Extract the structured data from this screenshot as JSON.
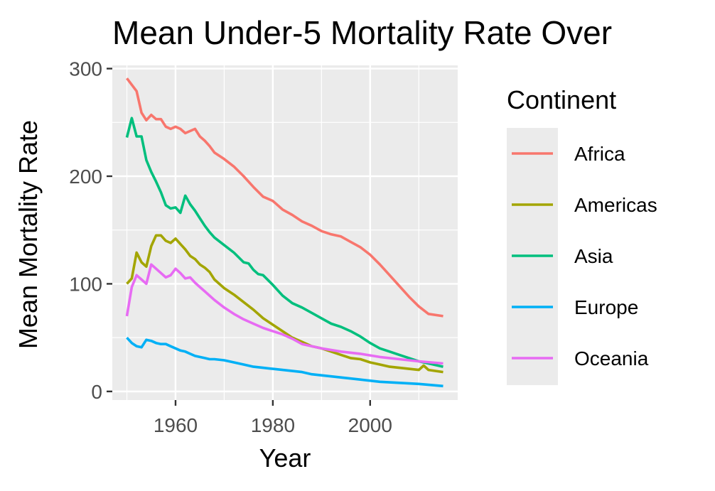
{
  "chart_data": {
    "type": "line",
    "title": "Mean Under-5 Mortality Rate Over",
    "xlabel": "Year",
    "ylabel": "Mean Mortality Rate",
    "xlim": [
      1947,
      2018
    ],
    "ylim": [
      -8,
      303
    ],
    "x_ticks": [
      1960,
      1980,
      2000
    ],
    "x_tick_labels": [
      "1960",
      "1980",
      "2000"
    ],
    "y_ticks": [
      0,
      100,
      200,
      300
    ],
    "y_tick_labels": [
      "0",
      "100",
      "200",
      "300"
    ],
    "grid": true,
    "panel_background": "#ebebeb",
    "legend": {
      "title": "Continent",
      "position": "right"
    },
    "series": [
      {
        "name": "Africa",
        "color": "#F8766D",
        "x": [
          1950,
          1951,
          1952,
          1953,
          1954,
          1955,
          1956,
          1957,
          1958,
          1959,
          1960,
          1961,
          1962,
          1963,
          1964,
          1965,
          1966,
          1967,
          1968,
          1970,
          1972,
          1974,
          1976,
          1978,
          1980,
          1982,
          1984,
          1986,
          1988,
          1990,
          1992,
          1994,
          1996,
          1998,
          2000,
          2002,
          2004,
          2006,
          2008,
          2010,
          2012,
          2015
        ],
        "y": [
          291,
          285,
          279,
          259,
          252,
          257,
          253,
          253,
          246,
          244,
          246,
          244,
          240,
          242,
          244,
          237,
          233,
          228,
          222,
          216,
          209,
          200,
          190,
          181,
          177,
          169,
          164,
          158,
          154,
          149,
          146,
          144,
          139,
          134,
          127,
          118,
          108,
          98,
          88,
          79,
          72,
          70
        ]
      },
      {
        "name": "Americas",
        "color": "#A3A500",
        "x": [
          1950,
          1951,
          1952,
          1953,
          1954,
          1955,
          1956,
          1957,
          1958,
          1959,
          1960,
          1961,
          1962,
          1963,
          1964,
          1965,
          1966,
          1967,
          1968,
          1970,
          1972,
          1974,
          1976,
          1978,
          1980,
          1982,
          1984,
          1986,
          1988,
          1990,
          1992,
          1994,
          1996,
          1998,
          2000,
          2002,
          2004,
          2006,
          2008,
          2010,
          2011,
          2012,
          2015
        ],
        "y": [
          100,
          105,
          129,
          120,
          116,
          135,
          145,
          145,
          140,
          138,
          142,
          137,
          132,
          126,
          123,
          118,
          115,
          111,
          104,
          96,
          90,
          83,
          76,
          68,
          62,
          56,
          50,
          46,
          42,
          40,
          37,
          34,
          31,
          30,
          27,
          25,
          23,
          22,
          21,
          20,
          24,
          20,
          18
        ]
      },
      {
        "name": "Asia",
        "color": "#00BF7D",
        "x": [
          1950,
          1951,
          1952,
          1953,
          1954,
          1955,
          1956,
          1957,
          1958,
          1959,
          1960,
          1961,
          1962,
          1963,
          1964,
          1965,
          1966,
          1967,
          1968,
          1970,
          1972,
          1974,
          1975,
          1976,
          1977,
          1978,
          1980,
          1982,
          1984,
          1986,
          1988,
          1990,
          1992,
          1994,
          1996,
          1998,
          2000,
          2002,
          2004,
          2006,
          2008,
          2010,
          2012,
          2015
        ],
        "y": [
          236,
          254,
          237,
          237,
          215,
          204,
          195,
          185,
          173,
          170,
          171,
          166,
          182,
          174,
          168,
          161,
          154,
          148,
          143,
          136,
          129,
          120,
          119,
          113,
          109,
          108,
          99,
          89,
          82,
          78,
          73,
          68,
          63,
          60,
          56,
          51,
          45,
          40,
          37,
          34,
          31,
          28,
          26,
          23
        ]
      },
      {
        "name": "Europe",
        "color": "#00B0F6",
        "x": [
          1950,
          1951,
          1952,
          1953,
          1954,
          1955,
          1956,
          1957,
          1958,
          1959,
          1960,
          1961,
          1962,
          1963,
          1964,
          1965,
          1966,
          1967,
          1968,
          1970,
          1972,
          1974,
          1976,
          1978,
          1980,
          1982,
          1984,
          1986,
          1988,
          1990,
          1994,
          1998,
          2002,
          2006,
          2010,
          2015
        ],
        "y": [
          50,
          45,
          42,
          41,
          48,
          47,
          45,
          44,
          44,
          42,
          40,
          38,
          37,
          35,
          33,
          32,
          31,
          30,
          30,
          29,
          27,
          25,
          23,
          22,
          21,
          20,
          19,
          18,
          16,
          15,
          13,
          11,
          9,
          8,
          7,
          5
        ]
      },
      {
        "name": "Oceania",
        "color": "#E76BF3",
        "x": [
          1950,
          1951,
          1952,
          1953,
          1954,
          1955,
          1956,
          1957,
          1958,
          1959,
          1960,
          1961,
          1962,
          1963,
          1964,
          1965,
          1966,
          1967,
          1968,
          1970,
          1972,
          1974,
          1976,
          1978,
          1980,
          1982,
          1984,
          1986,
          1988,
          1990,
          1994,
          1998,
          2002,
          2006,
          2010,
          2015
        ],
        "y": [
          70,
          97,
          108,
          104,
          100,
          118,
          114,
          110,
          106,
          108,
          114,
          110,
          105,
          106,
          101,
          97,
          93,
          89,
          85,
          78,
          72,
          67,
          63,
          59,
          56,
          53,
          49,
          44,
          42,
          40,
          37,
          35,
          32,
          30,
          28,
          26
        ]
      }
    ]
  }
}
